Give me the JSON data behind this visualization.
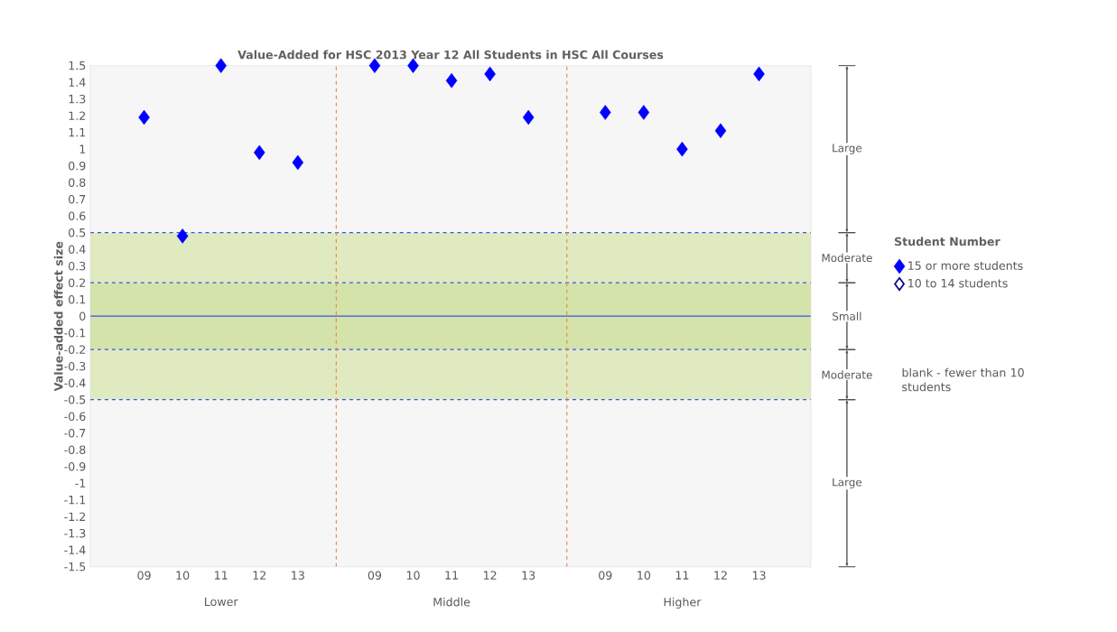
{
  "chart_data": {
    "type": "scatter",
    "title": "Value-Added for HSC 2013 Year 12 All Students in HSC All Courses",
    "ylabel": "Value-added effect size",
    "legend_title": "Student Number",
    "categories": [
      "09",
      "10",
      "11",
      "12",
      "13",
      null,
      "09",
      "10",
      "11",
      "12",
      "13",
      null,
      "09",
      "10",
      "11",
      "12",
      "13"
    ],
    "series": [
      {
        "name": "15 or more students",
        "color": "#0000ff",
        "values": [
          1.19,
          0.48,
          1.5,
          0.98,
          0.92,
          null,
          1.5,
          1.5,
          1.41,
          1.45,
          1.19,
          null,
          1.22,
          1.22,
          1.0,
          1.11,
          1.45
        ]
      },
      {
        "name": "10 to 14 students",
        "color": "#00008b",
        "values": [
          null,
          null,
          null,
          null,
          null,
          null,
          null,
          null,
          null,
          null,
          null,
          null,
          null,
          null,
          null,
          null,
          null
        ]
      }
    ],
    "marker": "diamond",
    "ylim": [
      -1.5,
      1.5
    ],
    "yticks": [
      -1.5,
      -1.4,
      -1.3,
      -1.2,
      -1.1,
      -1,
      -0.9,
      -0.8,
      -0.7,
      -0.6,
      -0.5,
      -0.4,
      -0.3,
      -0.2,
      -0.1,
      0,
      0.1,
      0.2,
      0.3,
      0.4,
      0.5,
      0.6,
      0.7,
      0.8,
      0.9,
      1,
      1.1,
      1.2,
      1.3,
      1.4,
      1.5
    ],
    "legend": "right",
    "bands": [
      {
        "axis": "y",
        "from": 0.5,
        "to": 1.5,
        "label": "Large",
        "color": "#f6f6f6"
      },
      {
        "axis": "y",
        "from": 0.2,
        "to": 0.5,
        "label": "Moderate",
        "color": "#dfeac0"
      },
      {
        "axis": "y",
        "from": -0.2,
        "to": 0.2,
        "label": "Small",
        "color": "#d4e3aa"
      },
      {
        "axis": "y",
        "from": -0.5,
        "to": -0.2,
        "label": "Moderate",
        "color": "#dfeac0"
      },
      {
        "axis": "y",
        "from": -1.5,
        "to": -0.5,
        "label": "Large",
        "color": "#f6f6f6"
      }
    ],
    "ref_lines": [
      {
        "axis": "y",
        "value": 0.5,
        "color": "#3355ee",
        "line_style": "dashed"
      },
      {
        "axis": "y",
        "value": 0.2,
        "color": "#3355ee",
        "line_style": "dashed"
      },
      {
        "axis": "y",
        "value": 0,
        "color": "#3355ee",
        "line_style": "solid"
      },
      {
        "axis": "y",
        "value": -0.2,
        "color": "#3355ee",
        "line_style": "dashed"
      },
      {
        "axis": "y",
        "value": -0.5,
        "color": "#3355ee",
        "line_style": "dashed"
      }
    ],
    "annotations": [
      "Lower",
      "Middle",
      "Higher",
      "blank - fewer than 10 students"
    ]
  }
}
